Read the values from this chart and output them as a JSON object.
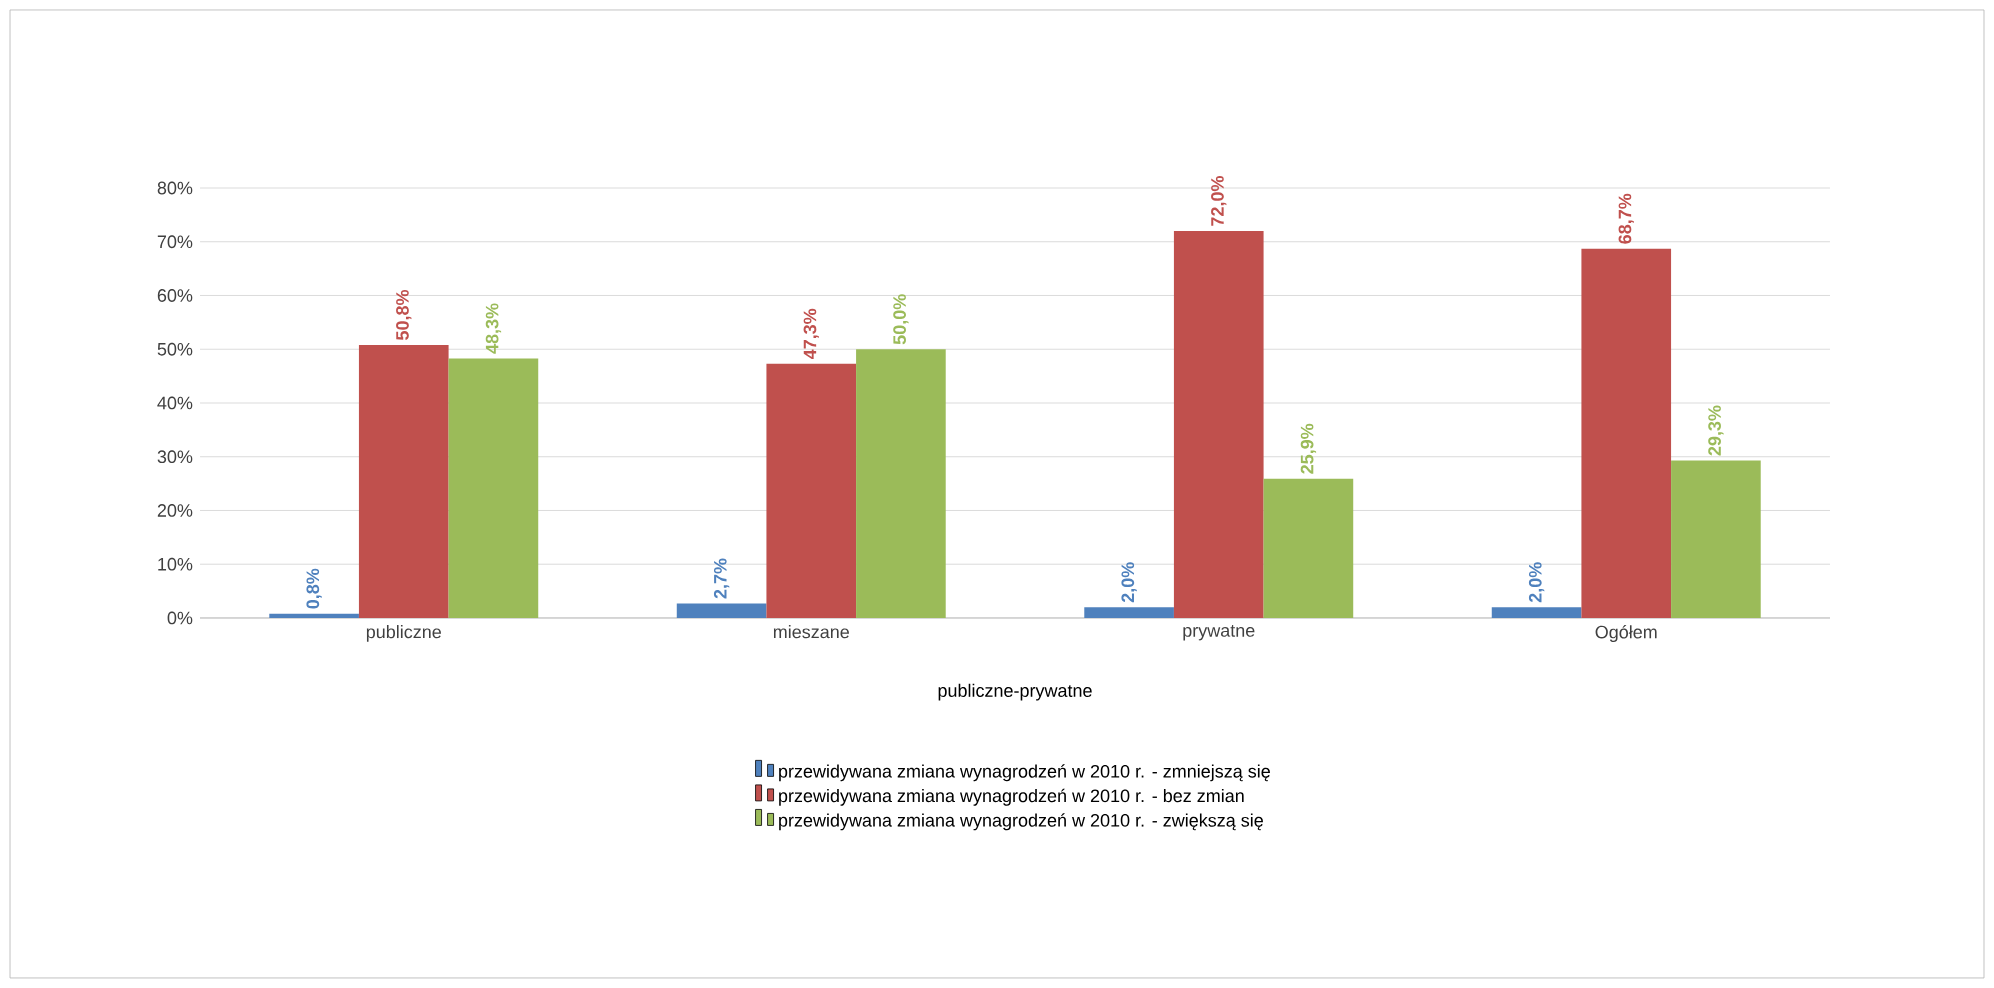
{
  "chart_data": {
    "type": "bar",
    "xlabel": "publiczne-prywatne",
    "categories": [
      "publiczne",
      "mieszane",
      "prywatne",
      "Ogółem"
    ],
    "series": [
      {
        "name": "przewidywana zmiana wynagrodzeń  w 2010 r.  -  zmniejszą się",
        "color": "#4f81bd",
        "values": [
          0.8,
          2.7,
          2.0,
          2.0
        ],
        "value_labels": [
          "0,8%",
          "2,7%",
          "2,0%",
          "2,0%"
        ]
      },
      {
        "name": "przewidywana zmiana wynagrodzeń  w 2010 r.  -  bez zmian",
        "color": "#c0504d",
        "values": [
          50.8,
          47.3,
          72.0,
          68.7
        ],
        "value_labels": [
          "50,8%",
          "47,3%",
          "72,0%",
          "68,7%"
        ]
      },
      {
        "name": "przewidywana zmiana wynagrodzeń  w 2010 r.  -  zwiększą się",
        "color": "#9bbb59",
        "values": [
          48.3,
          50.0,
          25.9,
          29.3
        ],
        "value_labels": [
          "48,3%",
          "50,0%",
          "25,9%",
          "29,3%"
        ]
      }
    ],
    "ylim": [
      0,
      80
    ],
    "yticks": [
      {
        "value": 0,
        "label": "0%"
      },
      {
        "value": 10,
        "label": "10%"
      },
      {
        "value": 20,
        "label": "20%"
      },
      {
        "value": 30,
        "label": "30%"
      },
      {
        "value": 40,
        "label": "40%"
      },
      {
        "value": 50,
        "label": "50%"
      },
      {
        "value": 60,
        "label": "60%"
      },
      {
        "value": 70,
        "label": "70%"
      },
      {
        "value": 80,
        "label": "80%"
      }
    ],
    "grid": "y",
    "legend": "bottom"
  }
}
